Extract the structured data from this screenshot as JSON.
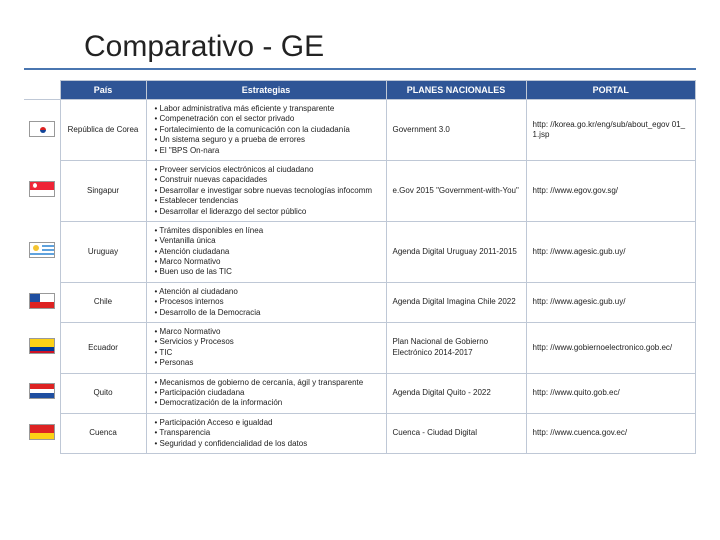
{
  "title": "Comparativo - GE",
  "headers": {
    "pais": "País",
    "estrategias": "Estrategias",
    "planes": "PLANES NACIONALES",
    "portal": "PORTAL"
  },
  "rows": [
    {
      "flag": "kr",
      "pais": "República de Corea",
      "estrategias": [
        "Labor administrativa más eficiente y transparente",
        "Compenetración con el sector privado",
        "Fortalecimiento de la comunicación con la ciudadanía",
        "Un sistema seguro y a prueba de errores",
        "El \"BPS On-nara"
      ],
      "plan": "Government 3.0",
      "portal": "http: //korea.go.kr/eng/sub/about_egov 01_1.jsp"
    },
    {
      "flag": "sg",
      "pais": "Singapur",
      "estrategias": [
        "Proveer servicios electrónicos al ciudadano",
        "Construir nuevas capacidades",
        "Desarrollar e investigar sobre nuevas tecnologías infocomm",
        "Establecer tendencias",
        "Desarrollar el liderazgo del sector público"
      ],
      "plan": "e.Gov 2015 \"Government-with-You\"",
      "portal": "http: //www.egov.gov.sg/"
    },
    {
      "flag": "uy",
      "pais": "Uruguay",
      "estrategias": [
        "Trámites disponibles en línea",
        "Ventanilla única",
        "Atención ciudadana",
        "Marco Normativo",
        "Buen uso de las TIC"
      ],
      "plan": "Agenda Digital Uruguay 2011-2015",
      "portal": "http: //www.agesic.gub.uy/"
    },
    {
      "flag": "cl",
      "pais": "Chile",
      "estrategias": [
        "Atención al ciudadano",
        "Procesos internos",
        "Desarrollo de la Democracia"
      ],
      "plan": "Agenda Digital Imagina Chile 2022",
      "portal": "http: //www.agesic.gub.uy/"
    },
    {
      "flag": "ec",
      "pais": "Ecuador",
      "estrategias": [
        "Marco Normativo",
        "Servicios y Procesos",
        "TIC",
        "Personas"
      ],
      "plan": "Plan Nacional de Gobierno Electrónico 2014-2017",
      "portal": "http: //www.gobiernoelectronico.gob.ec/"
    },
    {
      "flag": "quito",
      "pais": "Quito",
      "estrategias": [
        "Mecanismos de gobierno de cercanía, ágil y transparente",
        "Participación ciudadana",
        "Democratización de la información"
      ],
      "plan": "Agenda Digital Quito - 2022",
      "portal": "http: //www.quito.gob.ec/"
    },
    {
      "flag": "cuenca",
      "pais": "Cuenca",
      "estrategias": [
        "Participación Acceso e igualdad",
        "Transparencia",
        "Seguridad y confidencialidad de los datos"
      ],
      "plan": "Cuenca - Ciudad Digital",
      "portal": "http: //www.cuenca.gov.ec/"
    }
  ]
}
